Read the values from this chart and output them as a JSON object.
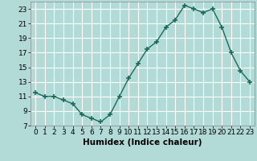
{
  "x": [
    0,
    1,
    2,
    3,
    4,
    5,
    6,
    7,
    8,
    9,
    10,
    11,
    12,
    13,
    14,
    15,
    16,
    17,
    18,
    19,
    20,
    21,
    22,
    23
  ],
  "y": [
    11.5,
    11.0,
    11.0,
    10.5,
    10.0,
    8.5,
    8.0,
    7.5,
    8.5,
    11.0,
    13.5,
    15.5,
    17.5,
    18.5,
    20.5,
    21.5,
    23.5,
    23.0,
    22.5,
    23.0,
    20.5,
    17.0,
    14.5,
    13.0
  ],
  "line_color": "#1a6b5a",
  "marker_color": "#1a6b5a",
  "bg_color": "#b2dbd8",
  "grid_color": "#ffffff",
  "grid_minor_color": "#d0eeec",
  "xlabel": "Humidex (Indice chaleur)",
  "xlim": [
    -0.5,
    23.5
  ],
  "ylim": [
    7,
    24
  ],
  "yticks": [
    7,
    9,
    11,
    13,
    15,
    17,
    19,
    21,
    23
  ],
  "tick_fontsize": 6.5,
  "label_fontsize": 7.5
}
